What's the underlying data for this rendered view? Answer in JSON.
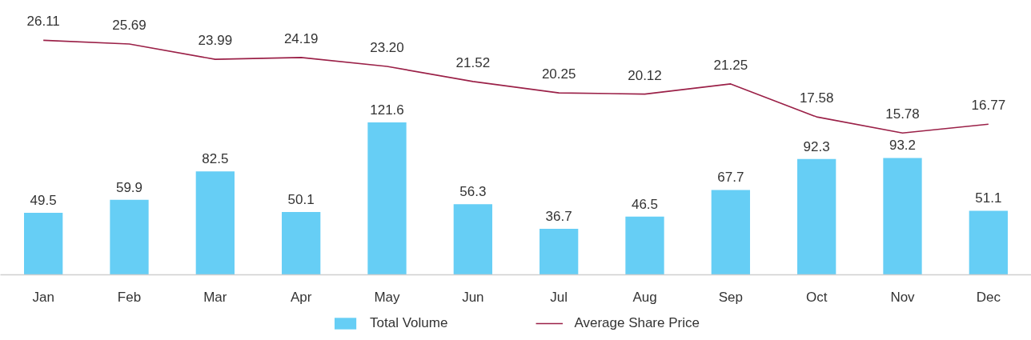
{
  "chart_data": {
    "type": "bar",
    "categories": [
      "Jan",
      "Feb",
      "Mar",
      "Apr",
      "May",
      "Jun",
      "Jul",
      "Aug",
      "Sep",
      "Oct",
      "Nov",
      "Dec"
    ],
    "series": [
      {
        "name": "Total Volume",
        "color": "#66cef5",
        "values": [
          49.5,
          59.9,
          82.5,
          50.1,
          121.6,
          56.3,
          36.7,
          46.5,
          67.7,
          92.3,
          93.2,
          51.1
        ]
      },
      {
        "name": "Average Share Price",
        "type": "line",
        "axis": "y2",
        "color": "#9b2148",
        "values": [
          26.11,
          25.69,
          23.99,
          24.19,
          23.2,
          21.52,
          20.25,
          20.12,
          21.25,
          17.58,
          15.78,
          16.77
        ],
        "value_labels": [
          "26.11",
          "25.69",
          "23.99",
          "24.19",
          "23.20",
          "21.52",
          "20.25",
          "20.12",
          "21.25",
          "17.58",
          "15.78",
          "16.77"
        ]
      }
    ],
    "data_labels": true,
    "legend": "bottom",
    "grid": false,
    "tick_labels": "x"
  }
}
